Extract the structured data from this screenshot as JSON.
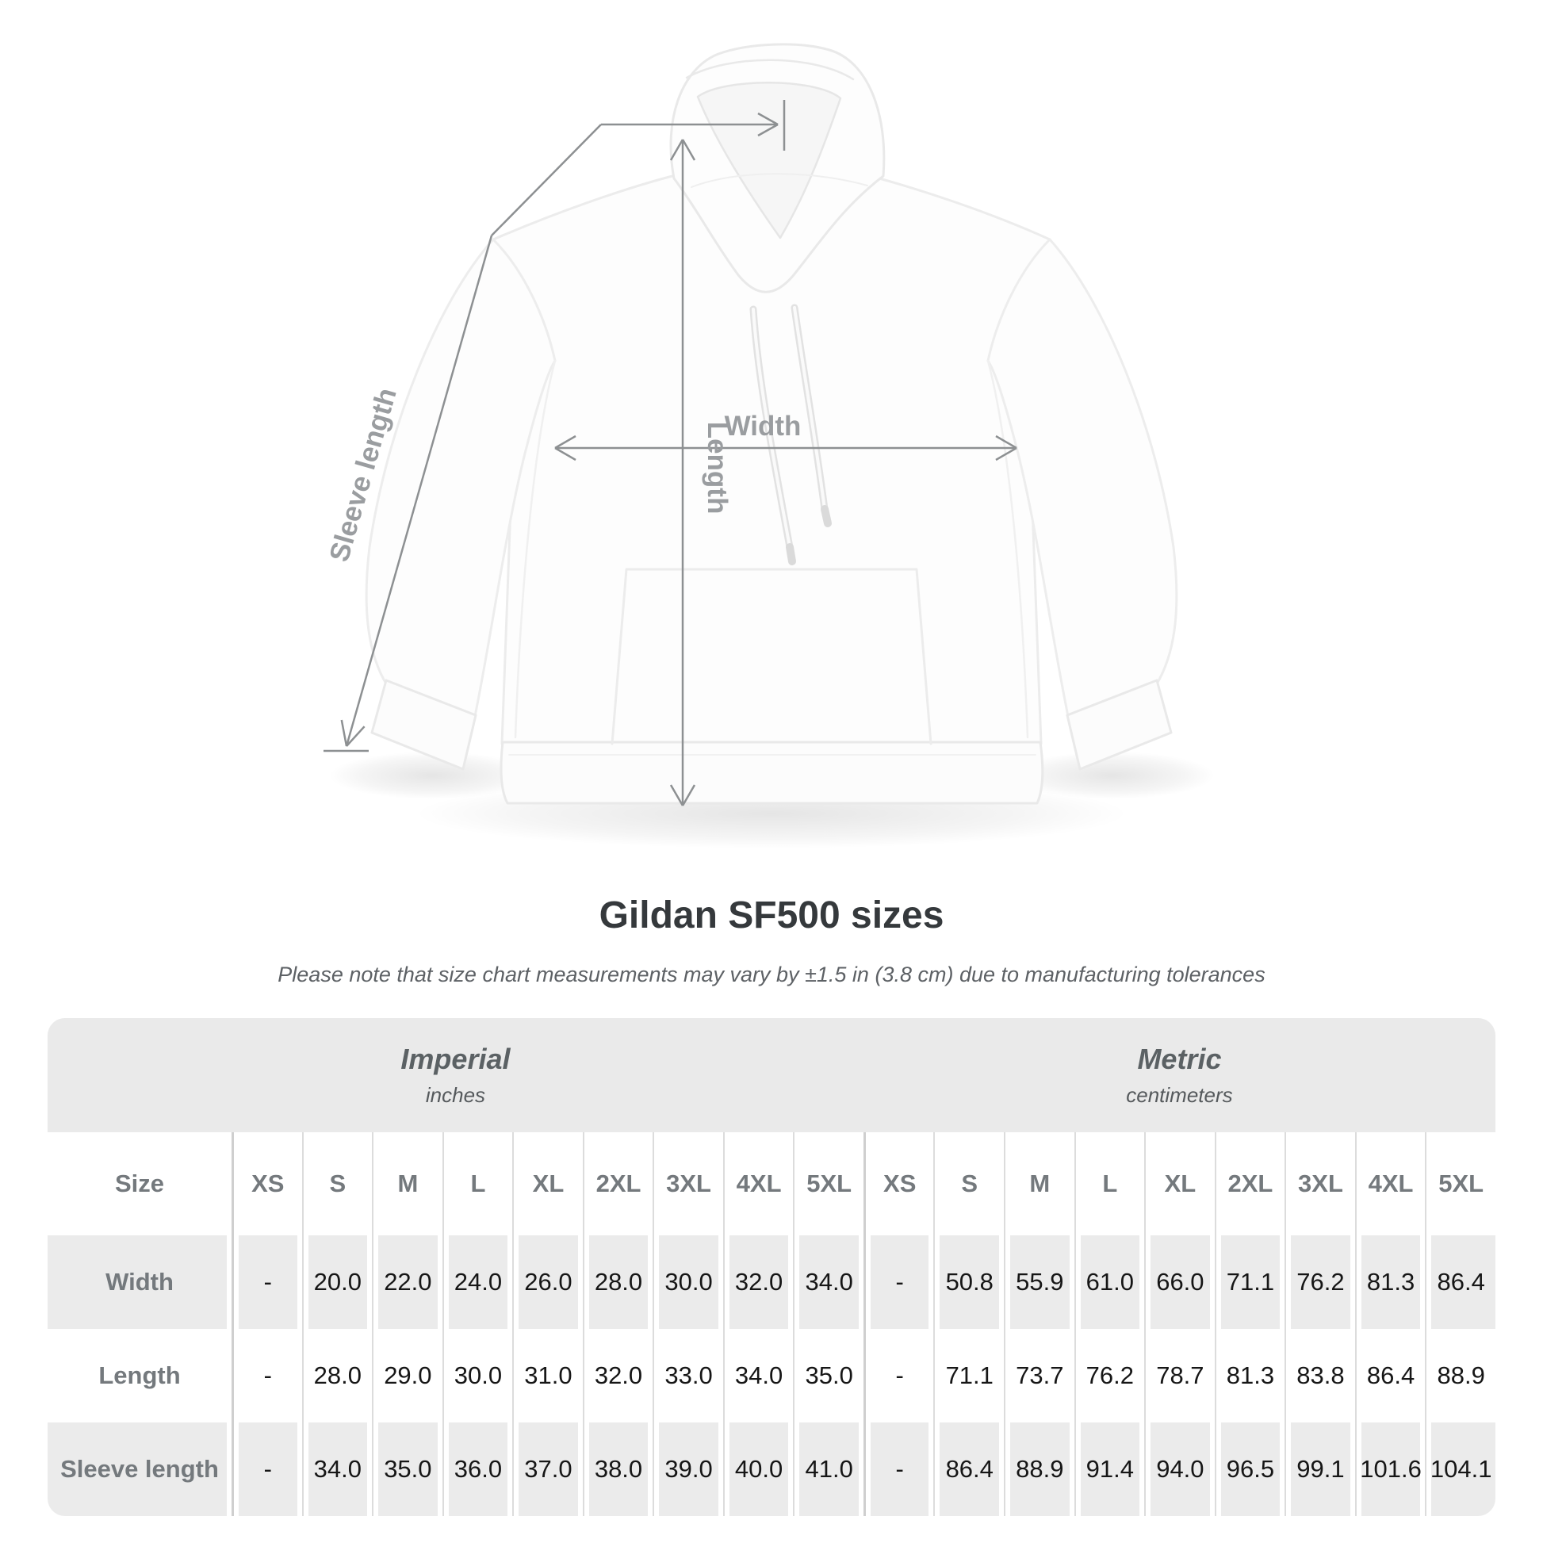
{
  "title": "Gildan SF500 sizes",
  "note": "Please note that size chart measurements may vary by ±1.5 in (3.8 cm) due to manufacturing tolerances",
  "diagram": {
    "labels": {
      "sleeve_length": "Sleeve length",
      "length": "Length",
      "width": "Width"
    },
    "line_color": "#8d9092",
    "label_color": "#9a9da0"
  },
  "table": {
    "size_header": "Size",
    "unit_groups": [
      {
        "name": "Imperial",
        "unit": "inches"
      },
      {
        "name": "Metric",
        "unit": "centimeters"
      }
    ],
    "sizes": [
      "XS",
      "S",
      "M",
      "L",
      "XL",
      "2XL",
      "3XL",
      "4XL",
      "5XL"
    ],
    "rows": [
      {
        "label": "Width",
        "imperial": [
          "-",
          "20.0",
          "22.0",
          "24.0",
          "26.0",
          "28.0",
          "30.0",
          "32.0",
          "34.0"
        ],
        "metric": [
          "-",
          "50.8",
          "55.9",
          "61.0",
          "66.0",
          "71.1",
          "76.2",
          "81.3",
          "86.4"
        ]
      },
      {
        "label": "Length",
        "imperial": [
          "-",
          "28.0",
          "29.0",
          "30.0",
          "31.0",
          "32.0",
          "33.0",
          "34.0",
          "35.0"
        ],
        "metric": [
          "-",
          "71.1",
          "73.7",
          "76.2",
          "78.7",
          "81.3",
          "83.8",
          "86.4",
          "88.9"
        ]
      },
      {
        "label": "Sleeve length",
        "imperial": [
          "-",
          "34.0",
          "35.0",
          "36.0",
          "37.0",
          "38.0",
          "39.0",
          "40.0",
          "41.0"
        ],
        "metric": [
          "-",
          "86.4",
          "88.9",
          "91.4",
          "94.0",
          "96.5",
          "99.1",
          "101.6",
          "104.1"
        ]
      }
    ]
  }
}
